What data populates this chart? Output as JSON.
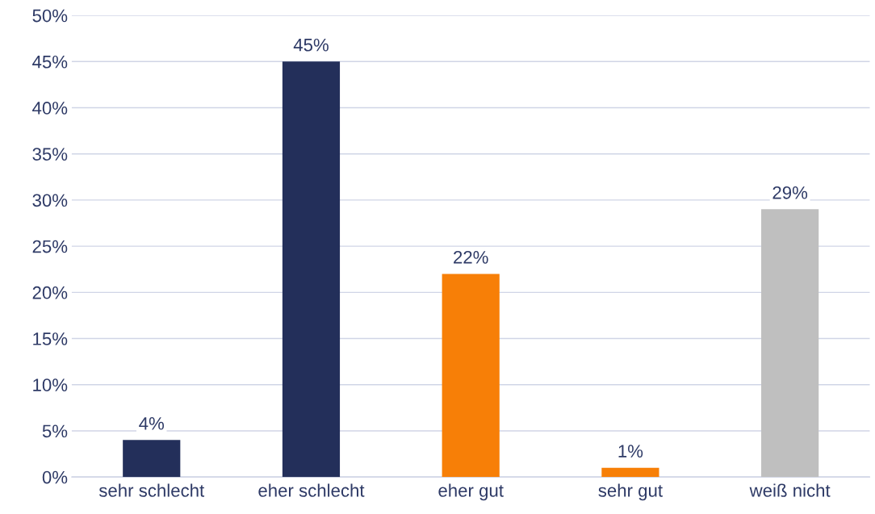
{
  "chart_data": {
    "type": "bar",
    "categories": [
      "sehr schlecht",
      "eher schlecht",
      "eher gut",
      "sehr gut",
      "weiß nicht"
    ],
    "values": [
      4,
      45,
      22,
      1,
      29
    ],
    "colors": [
      "#232f5a",
      "#232f5a",
      "#f77f07",
      "#f77f07",
      "#bfbfbf"
    ],
    "ylim": [
      0,
      50
    ],
    "yticks": [
      {
        "value": 0,
        "label": "0%"
      },
      {
        "value": 5,
        "label": "5%"
      },
      {
        "value": 10,
        "label": "10%"
      },
      {
        "value": 15,
        "label": "15%"
      },
      {
        "value": 20,
        "label": "20%"
      },
      {
        "value": 25,
        "label": "25%"
      },
      {
        "value": 30,
        "label": "30%"
      },
      {
        "value": 35,
        "label": "35%"
      },
      {
        "value": 40,
        "label": "40%"
      },
      {
        "value": 45,
        "label": "45%"
      },
      {
        "value": 50,
        "label": "50%"
      }
    ],
    "value_labels": [
      "4%",
      "45%",
      "22%",
      "1%",
      "29%"
    ],
    "grid": "y",
    "legend": false
  }
}
